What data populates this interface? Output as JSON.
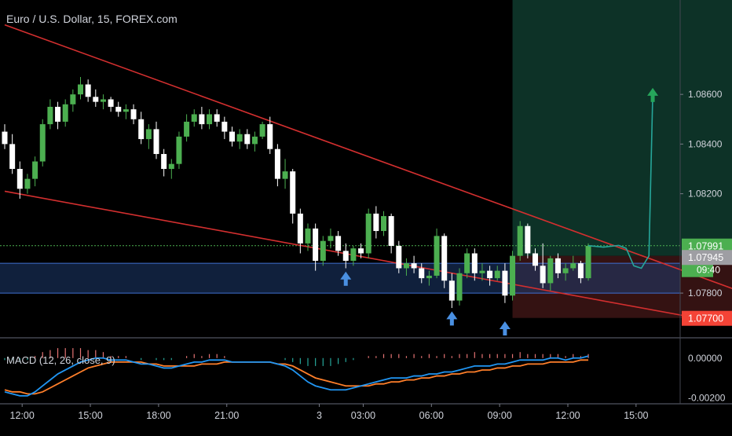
{
  "header": {
    "symbol_title": "Euro / U.S. Dollar, 15, FOREX.com"
  },
  "macd": {
    "label": "MACD (12, 26, close, 9)"
  },
  "colors": {
    "background": "#000000",
    "bull_candle": "#4caf50",
    "bear_candle": "#ffffff",
    "trendline": "#d32f2f",
    "target_zone": "#0f3b2e",
    "stop_zone": "#3a1414",
    "support_band": "#1e3a6e",
    "macd_line": "#2196f3",
    "signal_line": "#ff7f2a",
    "projection": "#26a69a",
    "arrow_blue": "#4a90e2",
    "arrow_green": "#26a65b",
    "price_green": "#4caf50",
    "price_red": "#f44336",
    "price_gray": "#9e9ea3"
  },
  "chart_data": {
    "type": "candlestick",
    "symbol": "Euro / U.S. Dollar",
    "interval": "15",
    "price_axis": {
      "ticks": [
        "1.08600",
        "1.08400",
        "1.08200",
        "1.07800"
      ],
      "ylim": [
        1.0762,
        1.0898
      ]
    },
    "time_axis": {
      "ticks": [
        "12:00",
        "15:00",
        "18:00",
        "21:00",
        "3",
        "03:00",
        "06:00",
        "09:00",
        "12:00",
        "15:00"
      ]
    },
    "price_labels": {
      "last_price": "1.07991",
      "countdown": "09:40",
      "level_mid": "1.07945",
      "stop_level": "1.07700"
    },
    "candles": [
      [
        1.0845,
        1.0848,
        1.0838,
        1.084
      ],
      [
        1.084,
        1.0844,
        1.0828,
        1.083
      ],
      [
        1.083,
        1.0833,
        1.0818,
        1.0822
      ],
      [
        1.0822,
        1.0828,
        1.082,
        1.0826
      ],
      [
        1.0826,
        1.0835,
        1.0823,
        1.0833
      ],
      [
        1.0833,
        1.085,
        1.0831,
        1.0848
      ],
      [
        1.0848,
        1.0858,
        1.0846,
        1.0855
      ],
      [
        1.0855,
        1.0857,
        1.0846,
        1.0849
      ],
      [
        1.0849,
        1.0858,
        1.0847,
        1.0856
      ],
      [
        1.0856,
        1.0862,
        1.0853,
        1.086
      ],
      [
        1.086,
        1.0867,
        1.0858,
        1.0864
      ],
      [
        1.0864,
        1.0866,
        1.0857,
        1.0859
      ],
      [
        1.0859,
        1.0862,
        1.0855,
        1.0857
      ],
      [
        1.0857,
        1.086,
        1.0854,
        1.0858
      ],
      [
        1.0858,
        1.0859,
        1.0853,
        1.0855
      ],
      [
        1.0855,
        1.0857,
        1.0851,
        1.0853
      ],
      [
        1.0853,
        1.0856,
        1.085,
        1.0854
      ],
      [
        1.0854,
        1.0856,
        1.0848,
        1.085
      ],
      [
        1.085,
        1.0853,
        1.084,
        1.0842
      ],
      [
        1.0842,
        1.0848,
        1.0838,
        1.0846
      ],
      [
        1.0846,
        1.0849,
        1.0834,
        1.0836
      ],
      [
        1.0836,
        1.0838,
        1.0827,
        1.083
      ],
      [
        1.083,
        1.0834,
        1.0826,
        1.0832
      ],
      [
        1.0832,
        1.0845,
        1.083,
        1.0843
      ],
      [
        1.0843,
        1.0852,
        1.0841,
        1.0849
      ],
      [
        1.0849,
        1.0854,
        1.0847,
        1.0852
      ],
      [
        1.0852,
        1.0855,
        1.0846,
        1.0848
      ],
      [
        1.0848,
        1.0854,
        1.0846,
        1.0852
      ],
      [
        1.0852,
        1.0854,
        1.0847,
        1.0849
      ],
      [
        1.0849,
        1.0851,
        1.0842,
        1.0845
      ],
      [
        1.0845,
        1.0847,
        1.0839,
        1.0841
      ],
      [
        1.0841,
        1.0846,
        1.0838,
        1.0844
      ],
      [
        1.0844,
        1.0846,
        1.0838,
        1.084
      ],
      [
        1.084,
        1.0845,
        1.0837,
        1.0843
      ],
      [
        1.0843,
        1.0849,
        1.0842,
        1.0848
      ],
      [
        1.0848,
        1.0851,
        1.0836,
        1.0838
      ],
      [
        1.0838,
        1.084,
        1.0823,
        1.0826
      ],
      [
        1.0826,
        1.0834,
        1.0822,
        1.0829
      ],
      [
        1.0829,
        1.083,
        1.0808,
        1.0812
      ],
      [
        1.0812,
        1.0814,
        1.0796,
        1.08
      ],
      [
        1.08,
        1.0808,
        1.0797,
        1.0806
      ],
      [
        1.0806,
        1.0808,
        1.0789,
        1.0793
      ],
      [
        1.0793,
        1.0803,
        1.0791,
        1.0801
      ],
      [
        1.0801,
        1.0806,
        1.0798,
        1.0803
      ],
      [
        1.0803,
        1.0805,
        1.0795,
        1.0797
      ],
      [
        1.0797,
        1.08,
        1.079,
        1.0793
      ],
      [
        1.0793,
        1.0799,
        1.0791,
        1.0798
      ],
      [
        1.0798,
        1.08,
        1.0794,
        1.0796
      ],
      [
        1.0796,
        1.0814,
        1.0794,
        1.0812
      ],
      [
        1.0812,
        1.0815,
        1.0802,
        1.0805
      ],
      [
        1.0805,
        1.0813,
        1.0803,
        1.0811
      ],
      [
        1.0811,
        1.0812,
        1.0796,
        1.0799
      ],
      [
        1.0799,
        1.0801,
        1.0788,
        1.079
      ],
      [
        1.079,
        1.0794,
        1.0787,
        1.0792
      ],
      [
        1.0792,
        1.0795,
        1.0788,
        1.079
      ],
      [
        1.079,
        1.0792,
        1.0784,
        1.0786
      ],
      [
        1.0786,
        1.0789,
        1.0783,
        1.0787
      ],
      [
        1.0787,
        1.0806,
        1.0786,
        1.0803
      ],
      [
        1.0803,
        1.0804,
        1.0782,
        1.0785
      ],
      [
        1.0785,
        1.0788,
        1.0774,
        1.0777
      ],
      [
        1.0777,
        1.079,
        1.0775,
        1.0788
      ],
      [
        1.0788,
        1.0798,
        1.0786,
        1.0796
      ],
      [
        1.0796,
        1.0798,
        1.0785,
        1.0788
      ],
      [
        1.0788,
        1.0792,
        1.0785,
        1.0789
      ],
      [
        1.0789,
        1.0791,
        1.0783,
        1.0786
      ],
      [
        1.0786,
        1.0791,
        1.0785,
        1.0789
      ],
      [
        1.0789,
        1.0792,
        1.0776,
        1.0779
      ],
      [
        1.0779,
        1.0797,
        1.0777,
        1.0795
      ],
      [
        1.0795,
        1.0809,
        1.0793,
        1.0807
      ],
      [
        1.0807,
        1.0808,
        1.0794,
        1.0796
      ],
      [
        1.0796,
        1.0798,
        1.0789,
        1.0791
      ],
      [
        1.0791,
        1.08,
        1.0782,
        1.0784
      ],
      [
        1.0784,
        1.0795,
        1.0781,
        1.0794
      ],
      [
        1.0794,
        1.0796,
        1.0786,
        1.0788
      ],
      [
        1.0788,
        1.0792,
        1.0785,
        1.079
      ],
      [
        1.079,
        1.0795,
        1.0789,
        1.0792
      ],
      [
        1.0792,
        1.0793,
        1.0784,
        1.0786
      ],
      [
        1.0786,
        1.08,
        1.0785,
        1.0799
      ]
    ],
    "trendlines": [
      {
        "from": [
          0,
          1.0888
        ],
        "to": [
          104,
          1.0773
        ]
      },
      {
        "from": [
          0,
          1.0821
        ],
        "to": [
          102,
          1.0764
        ]
      }
    ],
    "zones": {
      "target": {
        "from": 67,
        "to": 104,
        "low": 1.0795,
        "high": 1.0898
      },
      "stop": {
        "from": 67,
        "to": 104,
        "low": 1.077,
        "high": 1.0795
      },
      "support": {
        "low": 1.078,
        "high": 1.0792
      }
    },
    "projection": [
      [
        77,
        1.07991
      ],
      [
        79,
        1.07985
      ],
      [
        81,
        1.07992
      ],
      [
        82,
        1.0798
      ],
      [
        83,
        1.0791
      ],
      [
        84,
        1.079
      ],
      [
        85,
        1.0795
      ],
      [
        85.5,
        1.086
      ]
    ],
    "markers": [
      {
        "type": "up-arrow",
        "candle": 45,
        "price": 1.0788,
        "color": "#4a90e2"
      },
      {
        "type": "up-arrow",
        "candle": 59,
        "price": 1.0772,
        "color": "#4a90e2"
      },
      {
        "type": "up-arrow",
        "candle": 66,
        "price": 1.0768,
        "color": "#4a90e2"
      },
      {
        "type": "up-arrow",
        "candle": 85.5,
        "price": 1.0862,
        "color": "#26a65b"
      }
    ],
    "macd_panel": {
      "ticks": [
        "0.00000",
        "-0.00200"
      ],
      "ylim": [
        -0.0023,
        0.0009
      ],
      "macd": [
        -0.0017,
        -0.0018,
        -0.0019,
        -0.0019,
        -0.0017,
        -0.0014,
        -0.0011,
        -0.0008,
        -0.0006,
        -0.0004,
        -0.0002,
        -0.0001,
        0.0,
        0.0,
        -0.0001,
        -0.0001,
        -0.0001,
        -0.0002,
        -0.0003,
        -0.0003,
        -0.0004,
        -0.0005,
        -0.0005,
        -0.0004,
        -0.0003,
        -0.0002,
        -0.0002,
        -0.0001,
        -0.0001,
        -0.0001,
        -0.0002,
        -0.0002,
        -0.0002,
        -0.0002,
        -0.0002,
        -0.0002,
        -0.0003,
        -0.0004,
        -0.0006,
        -0.0009,
        -0.0012,
        -0.0014,
        -0.0015,
        -0.0016,
        -0.0016,
        -0.0016,
        -0.0015,
        -0.0014,
        -0.0013,
        -0.0012,
        -0.0011,
        -0.001,
        -0.001,
        -0.001,
        -0.0009,
        -0.0009,
        -0.0008,
        -0.0008,
        -0.0007,
        -0.0007,
        -0.0006,
        -0.0005,
        -0.0004,
        -0.0004,
        -0.0004,
        -0.0003,
        -0.0003,
        -0.0002,
        -0.0001,
        -0.0001,
        -0.0001,
        -0.0001,
        0.0,
        0.0,
        -0.0001,
        0.0,
        0.0,
        0.0001
      ],
      "signal": [
        -0.0016,
        -0.0017,
        -0.0017,
        -0.0018,
        -0.0018,
        -0.0017,
        -0.0015,
        -0.0013,
        -0.0011,
        -0.0009,
        -0.0007,
        -0.0005,
        -0.0004,
        -0.0003,
        -0.0002,
        -0.0002,
        -0.0002,
        -0.0002,
        -0.0002,
        -0.0003,
        -0.0003,
        -0.0004,
        -0.0004,
        -0.0004,
        -0.0004,
        -0.0004,
        -0.0003,
        -0.0003,
        -0.0003,
        -0.0002,
        -0.0002,
        -0.0002,
        -0.0002,
        -0.0002,
        -0.0002,
        -0.0002,
        -0.0003,
        -0.0003,
        -0.0004,
        -0.0006,
        -0.0008,
        -0.001,
        -0.0011,
        -0.0012,
        -0.0013,
        -0.0014,
        -0.0014,
        -0.0014,
        -0.0014,
        -0.0013,
        -0.0013,
        -0.0012,
        -0.0012,
        -0.0011,
        -0.0011,
        -0.001,
        -0.001,
        -0.0009,
        -0.0009,
        -0.0008,
        -0.0008,
        -0.0007,
        -0.0007,
        -0.0006,
        -0.0006,
        -0.0005,
        -0.0005,
        -0.0004,
        -0.0004,
        -0.0003,
        -0.0003,
        -0.0003,
        -0.0002,
        -0.0002,
        -0.0002,
        -0.0002,
        -0.0001,
        -0.0001
      ]
    }
  }
}
